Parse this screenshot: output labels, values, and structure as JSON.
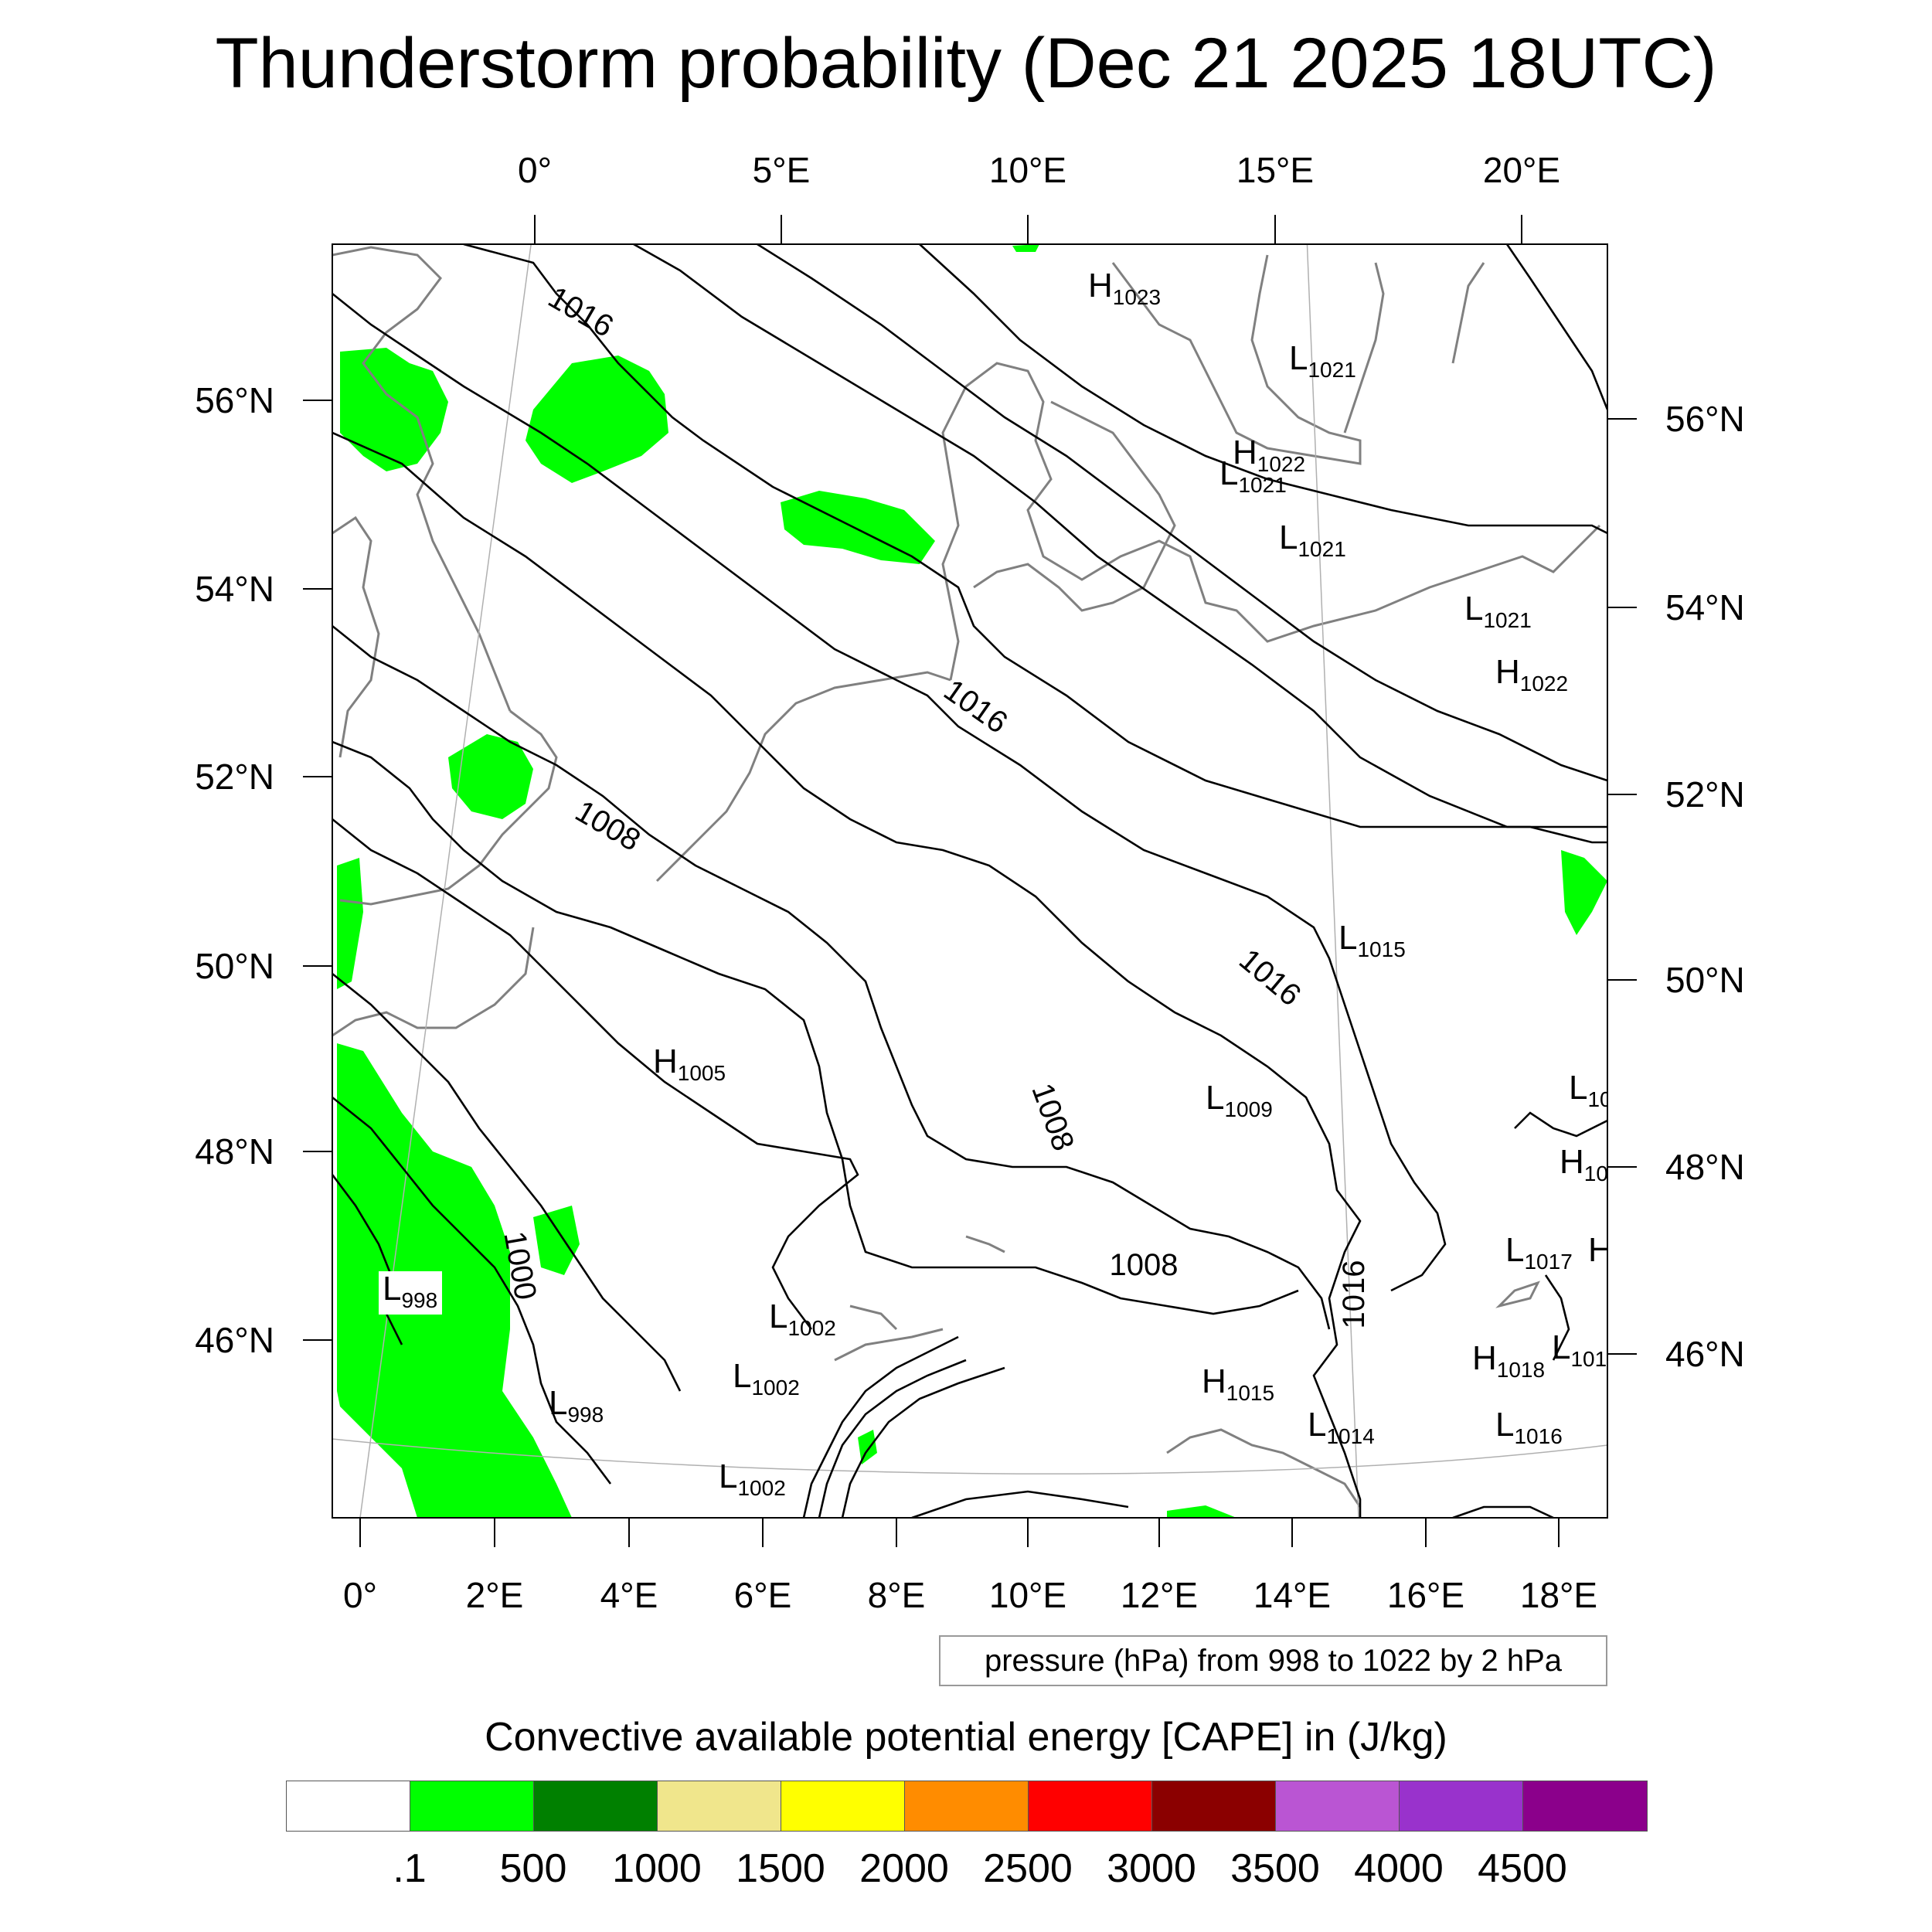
{
  "title": "Thunderstorm probability (Dec 21 2025 18UTC)",
  "map": {
    "top_lon_ticks": [
      "0°",
      "5°E",
      "10°E",
      "15°E",
      "20°E"
    ],
    "bottom_lon_ticks": [
      "0°",
      "2°E",
      "4°E",
      "6°E",
      "8°E",
      "10°E",
      "12°E",
      "14°E",
      "16°E",
      "18°E"
    ],
    "left_lat_ticks": [
      "56°N",
      "54°N",
      "52°N",
      "50°N",
      "48°N",
      "46°N"
    ],
    "right_lat_ticks": [
      "56°N",
      "54°N",
      "52°N",
      "50°N",
      "48°N",
      "46°N"
    ],
    "contour_labels": [
      "1016",
      "1016",
      "1008",
      "1016",
      "1008",
      "1008",
      "1000",
      "1016"
    ],
    "pressure_centers": [
      {
        "type": "H",
        "value": "1023"
      },
      {
        "type": "L",
        "value": "1021"
      },
      {
        "type": "H",
        "value": "1022"
      },
      {
        "type": "L",
        "value": "1021"
      },
      {
        "type": "L",
        "value": "1021"
      },
      {
        "type": "L",
        "value": "1021"
      },
      {
        "type": "H",
        "value": "1022"
      },
      {
        "type": "L",
        "value": "1015"
      },
      {
        "type": "H",
        "value": "1005"
      },
      {
        "type": "L",
        "value": "1009"
      },
      {
        "type": "L",
        "value": "10"
      },
      {
        "type": "H",
        "value": "10"
      },
      {
        "type": "L",
        "value": "998"
      },
      {
        "type": "L",
        "value": "1002"
      },
      {
        "type": "L",
        "value": "1002"
      },
      {
        "type": "L",
        "value": "998"
      },
      {
        "type": "L",
        "value": "1017"
      },
      {
        "type": "H",
        "value": ""
      },
      {
        "type": "H",
        "value": "1018"
      },
      {
        "type": "L",
        "value": "101"
      },
      {
        "type": "H",
        "value": "1015"
      },
      {
        "type": "L",
        "value": "1014"
      },
      {
        "type": "L",
        "value": "1016"
      },
      {
        "type": "L",
        "value": "1002"
      }
    ]
  },
  "pressure_note": "pressure (hPa) from 998 to 1022 by 2 hPa",
  "legend": {
    "title": "Convective available potential energy [CAPE] in (J/kg)",
    "colors": [
      "#ffffff",
      "#00ff00",
      "#008000",
      "#f0e68c",
      "#ffff00",
      "#ff8c00",
      "#ff0000",
      "#8b0000",
      "#ba55d3",
      "#9932cc",
      "#8b008b"
    ],
    "labels": [
      ".1",
      "500",
      "1000",
      "1500",
      "2000",
      "2500",
      "3000",
      "3500",
      "4000",
      "4500"
    ]
  }
}
